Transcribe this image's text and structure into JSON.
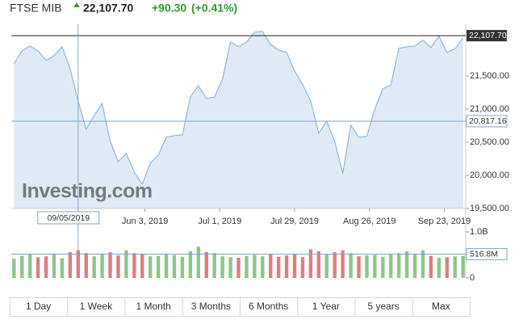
{
  "header": {
    "name": "FTSE MIB",
    "change": "+90.30",
    "change_pct": "(+0.41%)"
  },
  "chart_data": [
    {
      "type": "area",
      "x": [
        "2019-04-15",
        "2019-04-18",
        "2019-04-21",
        "2019-04-24",
        "2019-04-27",
        "2019-04-30",
        "2019-05-03",
        "2019-05-06",
        "2019-05-09",
        "2019-05-12",
        "2019-05-15",
        "2019-05-18",
        "2019-05-21",
        "2019-05-24",
        "2019-05-27",
        "2019-05-30",
        "2019-06-02",
        "2019-06-05",
        "2019-06-08",
        "2019-06-11",
        "2019-06-14",
        "2019-06-17",
        "2019-06-20",
        "2019-06-23",
        "2019-06-26",
        "2019-06-29",
        "2019-07-02",
        "2019-07-05",
        "2019-07-08",
        "2019-07-11",
        "2019-07-14",
        "2019-07-17",
        "2019-07-20",
        "2019-07-23",
        "2019-07-26",
        "2019-07-29",
        "2019-08-01",
        "2019-08-04",
        "2019-08-07",
        "2019-08-10",
        "2019-08-13",
        "2019-08-16",
        "2019-08-19",
        "2019-08-22",
        "2019-08-25",
        "2019-08-28",
        "2019-08-31",
        "2019-09-03",
        "2019-09-06",
        "2019-09-09",
        "2019-09-12",
        "2019-09-15",
        "2019-09-18",
        "2019-09-21",
        "2019-09-24",
        "2019-09-27",
        "2019-09-30"
      ],
      "values": [
        21684,
        21879,
        21952,
        21879,
        21733,
        21806,
        21940,
        21611,
        21123,
        20696,
        20903,
        21086,
        20513,
        20208,
        20330,
        20049,
        19866,
        20183,
        20305,
        20574,
        20598,
        20610,
        21184,
        21354,
        21159,
        21180,
        21452,
        22013,
        21940,
        22010,
        22160,
        22170,
        21977,
        21891,
        21855,
        21574,
        21367,
        21123,
        20635,
        20818,
        20513,
        20025,
        20757,
        20574,
        20590,
        21001,
        21306,
        21367,
        21916,
        21940,
        21950,
        22038,
        21930,
        22099,
        21855,
        21910,
        22074
      ],
      "color": "#8fb8de",
      "fill": "#dfeaf4",
      "xlim": [
        "2019-04-14",
        "2019-10-01"
      ],
      "xticks": [
        {
          "value": "2019-06-03",
          "label": "Jun 3, 2019"
        },
        {
          "value": "2019-07-01",
          "label": "Jul 1, 2019"
        },
        {
          "value": "2019-07-29",
          "label": "Jul 29, 2019"
        },
        {
          "value": "2019-08-26",
          "label": "Aug 26, 2019"
        },
        {
          "value": "2019-09-23",
          "label": "Sep 23, 2019"
        }
      ],
      "ylim": [
        19500,
        22280
      ],
      "yticks": [
        {
          "value": 19500,
          "label": "19,500.00"
        },
        {
          "value": 20000,
          "label": "20,000.00"
        },
        {
          "value": 20500,
          "label": "20,500.00"
        },
        {
          "value": 21000,
          "label": "21,000.00"
        },
        {
          "value": 21500,
          "label": "21,500.00"
        }
      ],
      "last_price": {
        "value": 22107.7,
        "label": "22,107.70"
      },
      "crosshair": {
        "x": {
          "value": "2019-05-09",
          "label": "09/05/2019"
        },
        "y": {
          "value": 20817.16,
          "label": "20,817.16"
        }
      },
      "watermark": "Investing.com"
    },
    {
      "type": "bar",
      "x": [
        "2019-04-15",
        "2019-04-18",
        "2019-04-21",
        "2019-04-24",
        "2019-04-27",
        "2019-04-30",
        "2019-05-03",
        "2019-05-06",
        "2019-05-09",
        "2019-05-12",
        "2019-05-15",
        "2019-05-18",
        "2019-05-21",
        "2019-05-24",
        "2019-05-27",
        "2019-05-30",
        "2019-06-02",
        "2019-06-05",
        "2019-06-08",
        "2019-06-11",
        "2019-06-14",
        "2019-06-17",
        "2019-06-20",
        "2019-06-23",
        "2019-06-26",
        "2019-06-29",
        "2019-07-02",
        "2019-07-05",
        "2019-07-08",
        "2019-07-11",
        "2019-07-14",
        "2019-07-17",
        "2019-07-20",
        "2019-07-23",
        "2019-07-26",
        "2019-07-29",
        "2019-08-01",
        "2019-08-04",
        "2019-08-07",
        "2019-08-10",
        "2019-08-13",
        "2019-08-16",
        "2019-08-19",
        "2019-08-22",
        "2019-08-25",
        "2019-08-28",
        "2019-08-31",
        "2019-09-03",
        "2019-09-06",
        "2019-09-09",
        "2019-09-12",
        "2019-09-15",
        "2019-09-18",
        "2019-09-21",
        "2019-09-24",
        "2019-09-27",
        "2019-09-30"
      ],
      "values": [
        420,
        480,
        510,
        450,
        470,
        520,
        430,
        560,
        600,
        540,
        470,
        520,
        560,
        490,
        600,
        540,
        520,
        470,
        480,
        510,
        500,
        460,
        580,
        680,
        560,
        540,
        470,
        450,
        440,
        480,
        500,
        470,
        520,
        460,
        490,
        510,
        450,
        620,
        580,
        520,
        560,
        600,
        540,
        470,
        490,
        500,
        460,
        520,
        540,
        580,
        510,
        600,
        480,
        440,
        450,
        470,
        480
      ],
      "up_color": "#8cc68c",
      "down_color": "#d98080",
      "ylim": [
        0,
        1000
      ],
      "yticks": [
        0,
        {
          "value": 1000,
          "label": "1.0B"
        }
      ],
      "current": {
        "value": 516.8,
        "label": "516.8M"
      }
    }
  ],
  "range_buttons": [
    "1 Day",
    "1 Week",
    "1 Month",
    "3 Months",
    "6 Months",
    "1 Year",
    "5 years",
    "Max"
  ]
}
